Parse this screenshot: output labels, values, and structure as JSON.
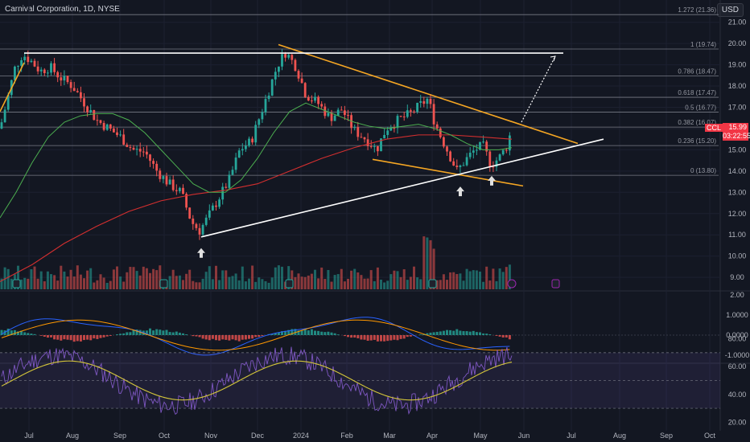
{
  "header": {
    "title": "Carnival Corporation, 1D, NYSE",
    "currency_button": "USD"
  },
  "price_tag": {
    "symbol": "CCL",
    "price": "15.99",
    "countdown": "03:22:55"
  },
  "colors": {
    "background": "#131722",
    "up": "#26a69a",
    "down": "#ef5350",
    "trend_orange": "#f5a623",
    "support_white": "#ffffff",
    "ma_green": "#4caf50",
    "ma_red": "#d32f2f",
    "macd_blue": "#2962ff",
    "macd_orange": "#ff9800",
    "rsi_purple": "#7e57c2",
    "rsi_yellow": "#d4c63a",
    "earnings_green": "#26a69a",
    "event_purple": "#9c27b0"
  },
  "chart_data": [
    {
      "type": "candlestick",
      "title": "Carnival Corporation, 1D, NYSE",
      "x_ticks": [
        "Jul",
        "Aug",
        "Sep",
        "Oct",
        "Nov",
        "Dec",
        "2024",
        "Feb",
        "Mar",
        "Apr",
        "May",
        "Jun",
        "Jul",
        "Aug",
        "Sep",
        "Oct"
      ],
      "y_ticks": [
        "21.00",
        "20.00",
        "19.00",
        "18.00",
        "17.00",
        "16.00",
        "15.00",
        "14.00",
        "13.00",
        "12.00",
        "11.00",
        "10.00",
        "9.00"
      ],
      "ylim": [
        8.5,
        21.7
      ],
      "fib_levels": [
        {
          "label": "1.272 (21.36)",
          "value": 21.36
        },
        {
          "label": "1 (19.74)",
          "value": 19.74
        },
        {
          "label": "0.786 (18.47)",
          "value": 18.47
        },
        {
          "label": "0.618 (17.47)",
          "value": 17.47
        },
        {
          "label": "0.5 (16.77)",
          "value": 16.77
        },
        {
          "label": "0.382 (16.07)",
          "value": 16.07
        },
        {
          "label": "0.236 (15.20)",
          "value": 15.2
        },
        {
          "label": "0 (13.80)",
          "value": 13.8
        }
      ],
      "close_path": [
        [
          0,
          16.0
        ],
        [
          10,
          17.5
        ],
        [
          18,
          18.8
        ],
        [
          28,
          19.5
        ],
        [
          38,
          19.2
        ],
        [
          50,
          18.7
        ],
        [
          62,
          18.9
        ],
        [
          75,
          18.4
        ],
        [
          90,
          18.0
        ],
        [
          105,
          17.2
        ],
        [
          120,
          16.4
        ],
        [
          135,
          16.0
        ],
        [
          150,
          15.6
        ],
        [
          165,
          15.0
        ],
        [
          180,
          14.9
        ],
        [
          195,
          14.0
        ],
        [
          210,
          13.4
        ],
        [
          225,
          13.0
        ],
        [
          238,
          11.6
        ],
        [
          248,
          11.2
        ],
        [
          258,
          11.8
        ],
        [
          270,
          12.6
        ],
        [
          285,
          13.6
        ],
        [
          298,
          15.0
        ],
        [
          312,
          15.4
        ],
        [
          325,
          16.8
        ],
        [
          335,
          17.9
        ],
        [
          345,
          19.0
        ],
        [
          355,
          19.6
        ],
        [
          368,
          18.9
        ],
        [
          380,
          17.6
        ],
        [
          395,
          17.2
        ],
        [
          410,
          16.5
        ],
        [
          425,
          16.9
        ],
        [
          440,
          15.9
        ],
        [
          455,
          15.5
        ],
        [
          468,
          15.0
        ],
        [
          480,
          16.0
        ],
        [
          495,
          16.4
        ],
        [
          510,
          16.7
        ],
        [
          522,
          17.1
        ],
        [
          532,
          17.4
        ],
        [
          540,
          16.3
        ],
        [
          548,
          15.6
        ],
        [
          558,
          14.8
        ],
        [
          568,
          14.0
        ],
        [
          578,
          14.5
        ],
        [
          590,
          15.0
        ],
        [
          600,
          15.2
        ],
        [
          610,
          14.3
        ],
        [
          620,
          14.6
        ],
        [
          630,
          15.2
        ],
        [
          636,
          15.99
        ]
      ],
      "ma_green": [
        [
          0,
          11.8
        ],
        [
          20,
          13.0
        ],
        [
          40,
          14.4
        ],
        [
          60,
          15.6
        ],
        [
          80,
          16.3
        ],
        [
          100,
          16.6
        ],
        [
          120,
          16.7
        ],
        [
          140,
          16.7
        ],
        [
          160,
          16.4
        ],
        [
          180,
          15.8
        ],
        [
          200,
          15.0
        ],
        [
          220,
          14.2
        ],
        [
          240,
          13.4
        ],
        [
          260,
          13.0
        ],
        [
          280,
          13.0
        ],
        [
          300,
          13.6
        ],
        [
          320,
          14.6
        ],
        [
          340,
          15.8
        ],
        [
          360,
          16.8
        ],
        [
          380,
          17.2
        ],
        [
          400,
          16.9
        ],
        [
          420,
          16.6
        ],
        [
          440,
          16.3
        ],
        [
          460,
          16.1
        ],
        [
          480,
          16.0
        ],
        [
          500,
          16.1
        ],
        [
          520,
          16.2
        ],
        [
          540,
          16.0
        ],
        [
          560,
          15.7
        ],
        [
          580,
          15.3
        ],
        [
          600,
          15.0
        ],
        [
          620,
          15.0
        ],
        [
          636,
          15.1
        ]
      ],
      "ma_red": [
        [
          0,
          8.8
        ],
        [
          40,
          9.6
        ],
        [
          80,
          10.6
        ],
        [
          120,
          11.4
        ],
        [
          160,
          12.1
        ],
        [
          200,
          12.6
        ],
        [
          240,
          12.9
        ],
        [
          280,
          13.1
        ],
        [
          320,
          13.4
        ],
        [
          360,
          14.0
        ],
        [
          400,
          14.6
        ],
        [
          440,
          15.1
        ],
        [
          480,
          15.5
        ],
        [
          520,
          15.7
        ],
        [
          560,
          15.7
        ],
        [
          600,
          15.6
        ],
        [
          636,
          15.5
        ]
      ],
      "trendlines": [
        {
          "color": "orange",
          "from": [
            346,
            19.95
          ],
          "to": [
            718,
            15.3
          ]
        },
        {
          "color": "orange",
          "from": [
            463,
            14.55
          ],
          "to": [
            650,
            13.3
          ]
        },
        {
          "color": "white",
          "from": [
            250,
            10.9
          ],
          "to": [
            750,
            15.5
          ]
        },
        {
          "color": "white",
          "from": [
            30,
            19.55
          ],
          "to": [
            700,
            19.55
          ]
        },
        {
          "color": "orange",
          "from": [
            0,
            16.8
          ],
          "to": [
            30,
            19.1
          ]
        }
      ],
      "projection": {
        "from": [
          648,
          16.3
        ],
        "to": [
          690,
          19.4
        ]
      },
      "arrows_at": [
        [
          250,
          10.6
        ],
        [
          572,
          13.5
        ],
        [
          611,
          14.0
        ]
      ]
    },
    {
      "type": "bar",
      "name": "Volume",
      "note": "relative volume bars along the bottom of the price pane"
    },
    {
      "type": "line",
      "name": "MACD",
      "y_ticks": [
        "2.00",
        "1.0000",
        "0.0000",
        "-1.0000"
      ]
    },
    {
      "type": "line",
      "name": "RSI",
      "y_ticks": [
        "80.00",
        "60.00",
        "40.00",
        "20.00"
      ]
    }
  ]
}
